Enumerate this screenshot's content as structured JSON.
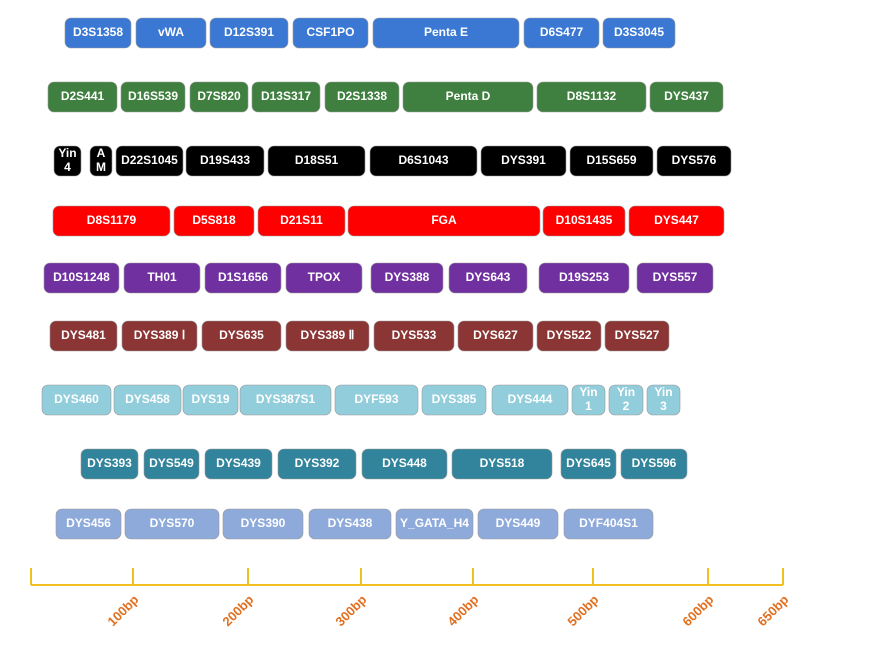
{
  "rows": [
    {
      "color": "#3a78d4",
      "loci": [
        "D3S1358",
        "vWA",
        "D12S391",
        "CSF1PO",
        "Penta E",
        "D6S477",
        "D3S3045"
      ]
    },
    {
      "color": "#3f7f3f",
      "loci": [
        "D2S441",
        "D16S539",
        "D7S820",
        "D13S317",
        "D2S1338",
        "Penta D",
        "D8S1132",
        "DYS437"
      ]
    },
    {
      "color": "#000000",
      "loci": [
        [
          "Yin",
          "4"
        ],
        [
          "A",
          "M"
        ],
        "D22S1045",
        "D19S433",
        "D18S51",
        "D6S1043",
        "DYS391",
        "D15S659",
        "DYS576"
      ]
    },
    {
      "color": "#ff0000",
      "loci": [
        "D8S1179",
        "D5S818",
        "D21S11",
        "FGA",
        "D10S1435",
        "DYS447"
      ]
    },
    {
      "color": "#7030a0",
      "loci": [
        "D10S1248",
        "TH01",
        "D1S1656",
        "TPOX",
        "DYS388",
        "DYS643",
        "D19S253",
        "DYS557"
      ]
    },
    {
      "color": "#8b3535",
      "loci": [
        "DYS481",
        "DYS389 Ⅰ",
        "DYS635",
        "DYS389 Ⅱ",
        "DYS533",
        "DYS627",
        "DYS522",
        "DYS527"
      ]
    },
    {
      "color": "#92cddc",
      "loci": [
        "DYS460",
        "DYS458",
        "DYS19",
        "DYS387S1",
        "DYF593",
        "DYS385",
        "DYS444",
        [
          "Yin",
          "1"
        ],
        [
          "Yin",
          "2"
        ],
        [
          "Yin",
          "3"
        ]
      ]
    },
    {
      "color": "#31849b",
      "loci": [
        "DYS393",
        "DYS549",
        "DYS439",
        "DYS392",
        "DYS448",
        "DYS518",
        "DYS645",
        "DYS596"
      ]
    },
    {
      "color": "#8eaadb",
      "loci": [
        "DYS456",
        "DYS570",
        "DYS390",
        "DYS438",
        "Y_GATA_H4",
        "DYS449",
        "DYF404S1"
      ]
    }
  ],
  "axis": {
    "color": "#f0c020",
    "label_color": "#e07020",
    "ticks": [
      "100bp",
      "200bp",
      "300bp",
      "400bp",
      "500bp",
      "600bp",
      "650bp"
    ]
  }
}
